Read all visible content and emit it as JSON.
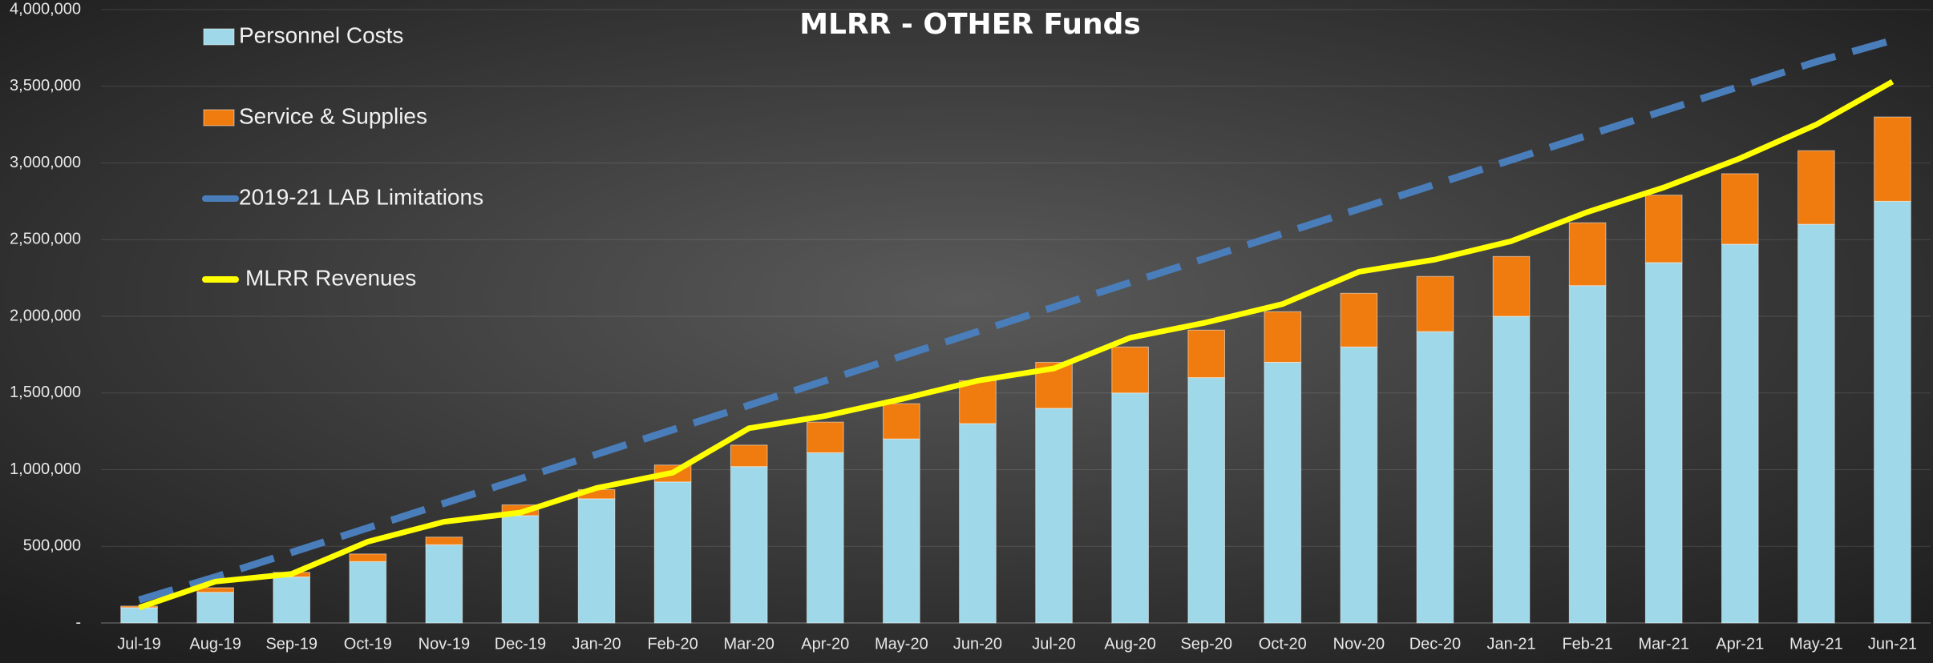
{
  "chart_data": {
    "type": "combo",
    "title": "MLRR - OTHER Funds",
    "categories": [
      "Jul-19",
      "Aug-19",
      "Sep-19",
      "Oct-19",
      "Nov-19",
      "Dec-19",
      "Jan-20",
      "Feb-20",
      "Mar-20",
      "Apr-20",
      "May-20",
      "Jun-20",
      "Jul-20",
      "Aug-20",
      "Sep-20",
      "Oct-20",
      "Nov-20",
      "Dec-20",
      "Jan-21",
      "Feb-21",
      "Mar-21",
      "Apr-21",
      "May-21",
      "Jun-21"
    ],
    "series": [
      {
        "name": "Personnel Costs",
        "type": "bar",
        "stacked": true,
        "color": "#9fd8e8",
        "values": [
          100000,
          200000,
          300000,
          400000,
          510000,
          700000,
          810000,
          920000,
          1020000,
          1110000,
          1200000,
          1300000,
          1400000,
          1500000,
          1600000,
          1700000,
          1800000,
          1900000,
          2000000,
          2200000,
          2350000,
          2470000,
          2600000,
          2750000
        ]
      },
      {
        "name": "Service & Supplies",
        "type": "bar",
        "stacked": true,
        "color": "#f07c0f",
        "values": [
          10000,
          30000,
          30000,
          50000,
          50000,
          70000,
          60000,
          110000,
          140000,
          200000,
          230000,
          280000,
          300000,
          300000,
          310000,
          330000,
          350000,
          360000,
          390000,
          410000,
          440000,
          460000,
          480000,
          550000
        ]
      },
      {
        "name": "2019-21 LAB Limitations",
        "type": "line",
        "dashed": true,
        "color": "#4a7ebb",
        "values": [
          150000,
          300000,
          460000,
          620000,
          780000,
          940000,
          1100000,
          1260000,
          1420000,
          1580000,
          1740000,
          1900000,
          2060000,
          2220000,
          2380000,
          2540000,
          2700000,
          2860000,
          3020000,
          3180000,
          3340000,
          3500000,
          3660000,
          3800000
        ]
      },
      {
        "name": "MLRR Revenues",
        "type": "line",
        "dashed": false,
        "color": "#ffff00",
        "values": [
          100000,
          270000,
          320000,
          530000,
          660000,
          720000,
          880000,
          980000,
          1270000,
          1350000,
          1460000,
          1580000,
          1660000,
          1860000,
          1960000,
          2080000,
          2290000,
          2370000,
          2490000,
          2680000,
          2840000,
          3030000,
          3250000,
          3530000
        ]
      }
    ],
    "ylim": [
      0,
      4000000
    ],
    "yticks": [
      {
        "value": 0,
        "label": "-"
      },
      {
        "value": 500000,
        "label": "500,000"
      },
      {
        "value": 1000000,
        "label": "1,000,000"
      },
      {
        "value": 1500000,
        "label": "1,500,000"
      },
      {
        "value": 2000000,
        "label": "2,000,000"
      },
      {
        "value": 2500000,
        "label": "2,500,000"
      },
      {
        "value": 3000000,
        "label": "3,000,000"
      },
      {
        "value": 3500000,
        "label": "3,500,000"
      },
      {
        "value": 4000000,
        "label": "4,000,000"
      }
    ],
    "grid": true,
    "legend": "top-left"
  }
}
